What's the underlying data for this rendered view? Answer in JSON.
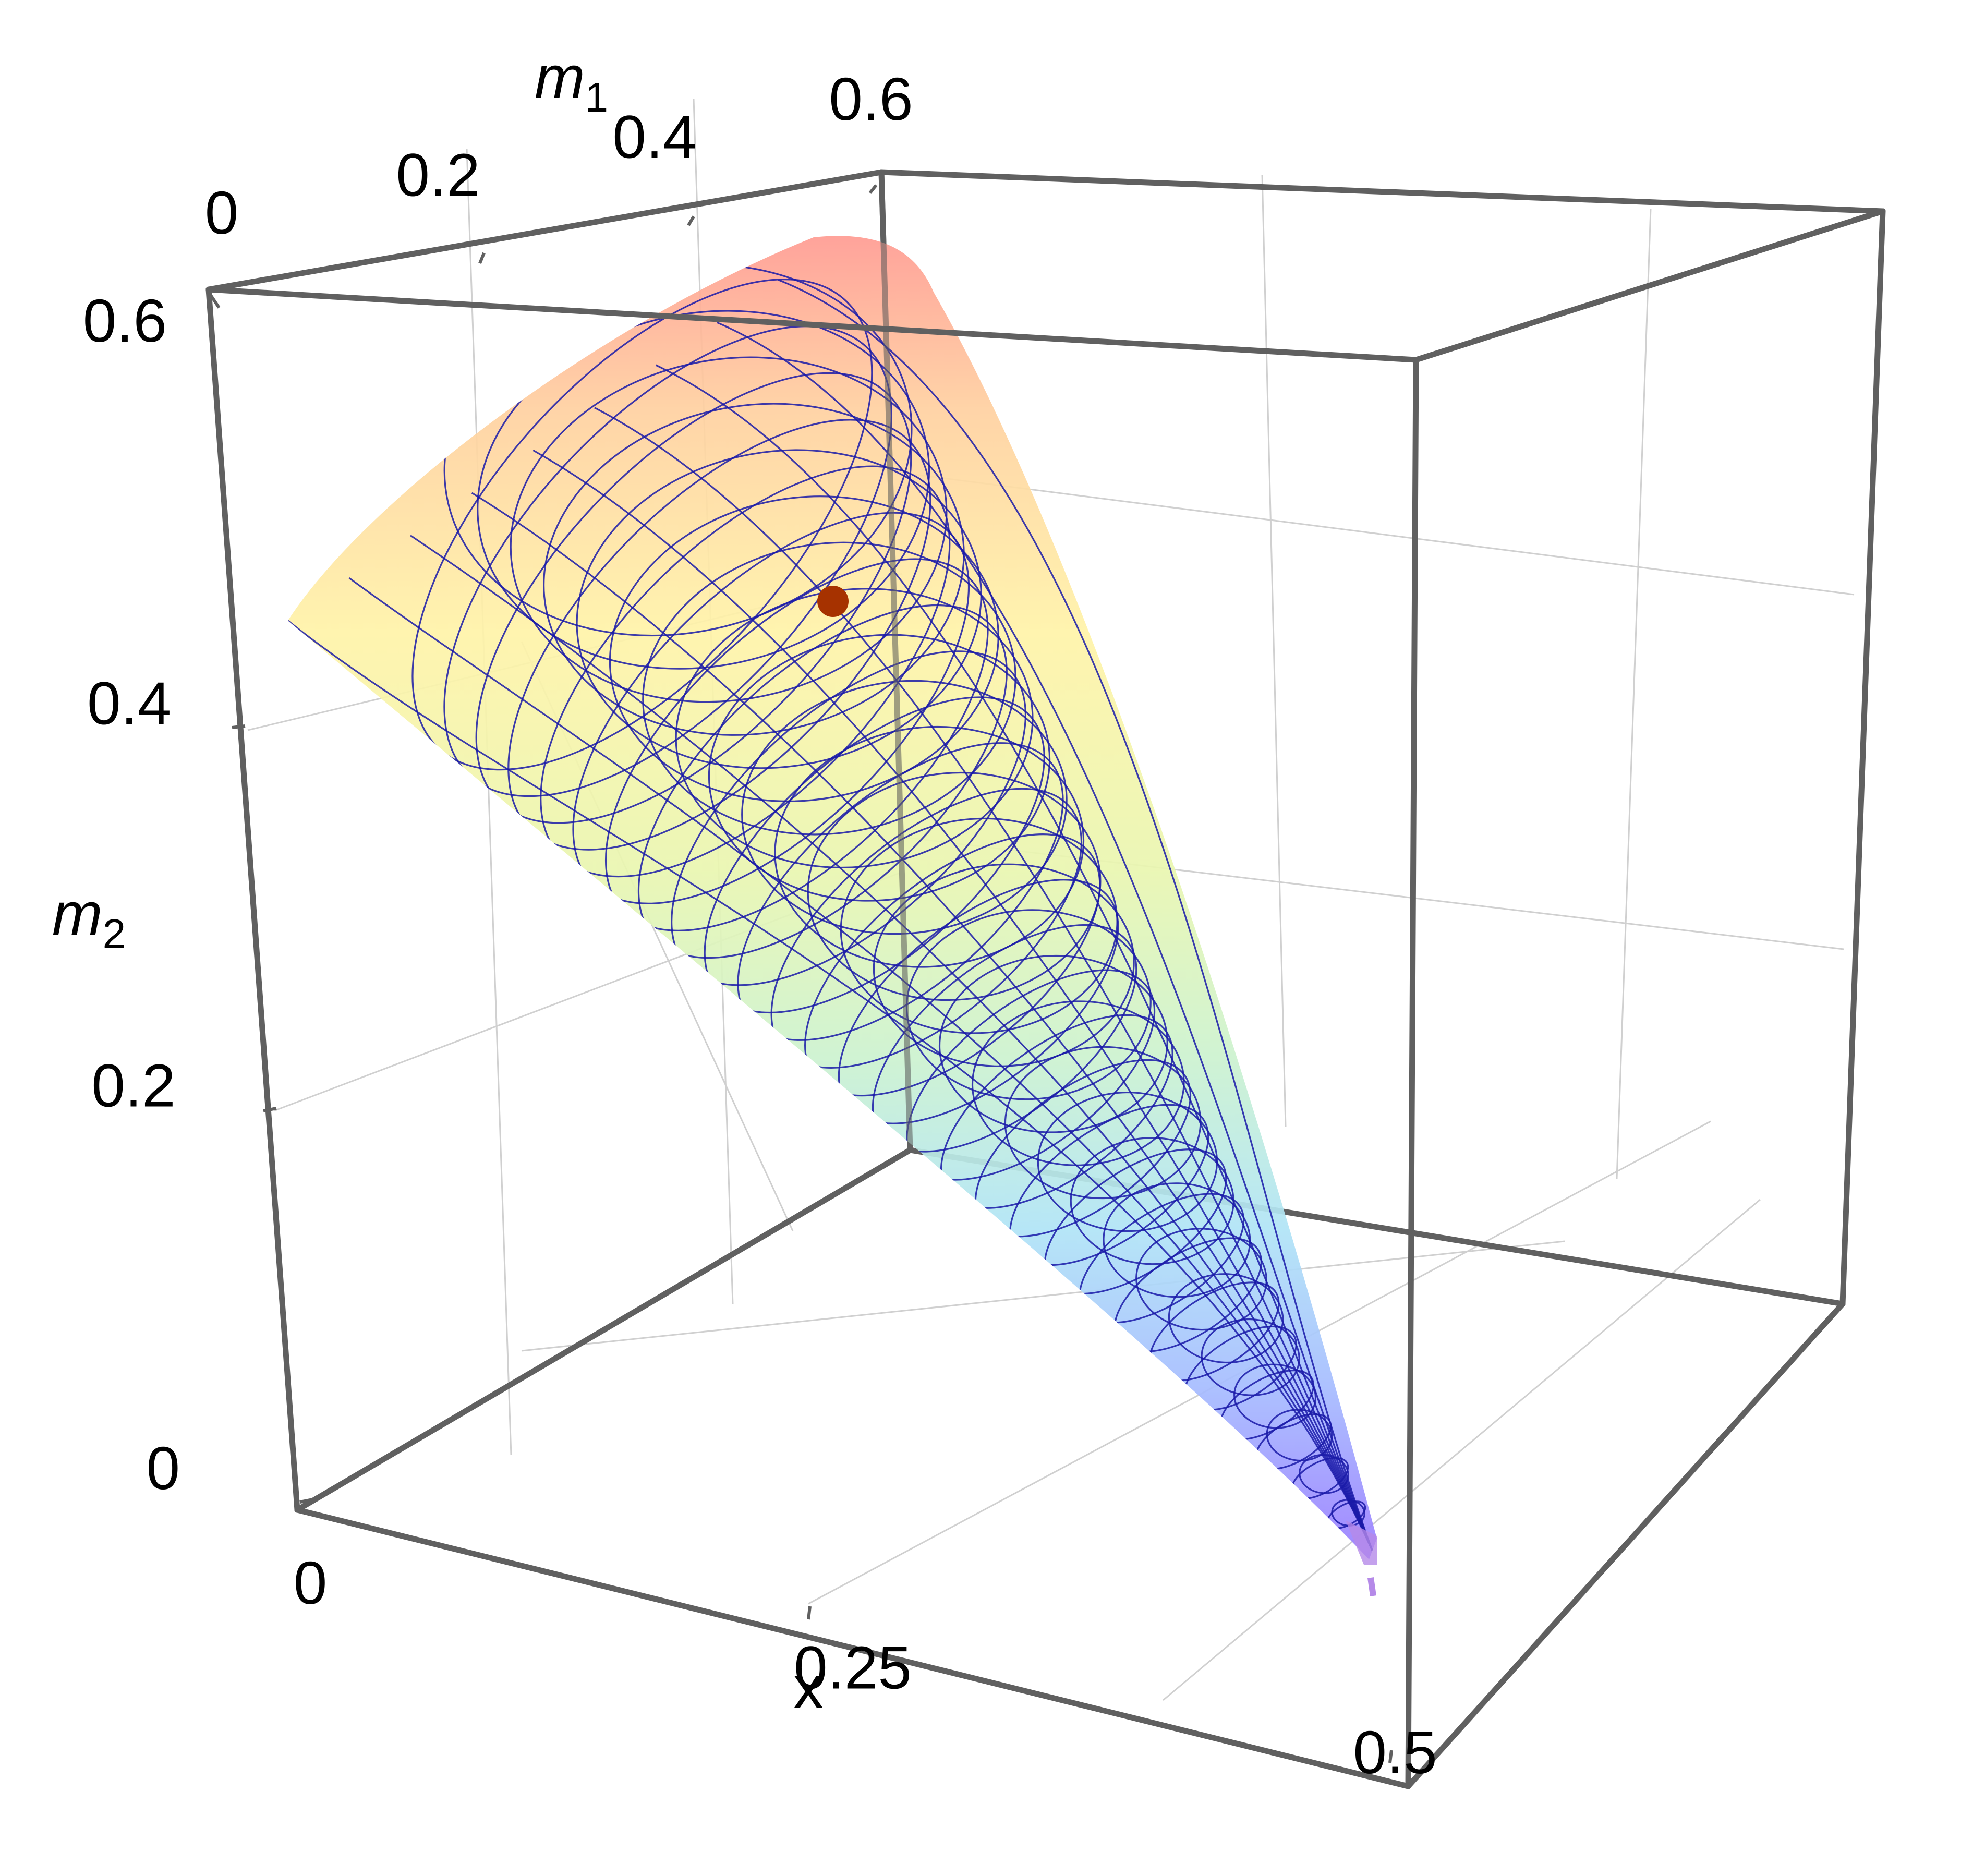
{
  "chart_data": {
    "type": "surface3d",
    "title": "",
    "axes": {
      "x": {
        "label": "x",
        "range": [
          0,
          0.5
        ],
        "ticks": [
          {
            "value": 0,
            "label": "0"
          },
          {
            "value": 0.25,
            "label": "0.25"
          },
          {
            "value": 0.5,
            "label": "0.5"
          }
        ]
      },
      "m1": {
        "label_main": "m",
        "label_sub": "1",
        "range": [
          0,
          0.65
        ],
        "ticks": [
          {
            "value": 0,
            "label": "0"
          },
          {
            "value": 0.2,
            "label": "0.2"
          },
          {
            "value": 0.4,
            "label": "0.4"
          },
          {
            "value": 0.6,
            "label": "0.6"
          }
        ]
      },
      "m2": {
        "label_main": "m",
        "label_sub": "2",
        "range": [
          0,
          0.62
        ],
        "ticks": [
          {
            "value": 0,
            "label": "0"
          },
          {
            "value": 0.2,
            "label": "0.2"
          },
          {
            "value": 0.4,
            "label": "0.4"
          },
          {
            "value": 0.6,
            "label": "0.6"
          }
        ]
      }
    },
    "surface": {
      "shape": "cone",
      "apex": {
        "x": 0.49,
        "m1": 0.3,
        "m2": 0.0
      },
      "rim": [
        {
          "x": 0.0,
          "m1": 0.0,
          "m2": 0.48
        },
        {
          "x": 0.0,
          "m1": 0.58,
          "m2": 0.6
        }
      ],
      "colormap": [
        "#8f7dff",
        "#9fb3ff",
        "#b3e6f7",
        "#d6f5c8",
        "#fff5a8",
        "#ffd99e",
        "#ff9b92"
      ],
      "colormap_variable": "m2",
      "mesh_color": "#1a1aa8",
      "opacity": 0.75
    },
    "marked_point": {
      "x": 0.15,
      "m1": 0.35,
      "m2": 0.45,
      "color": "#a63200"
    },
    "box": true,
    "grid": true
  }
}
